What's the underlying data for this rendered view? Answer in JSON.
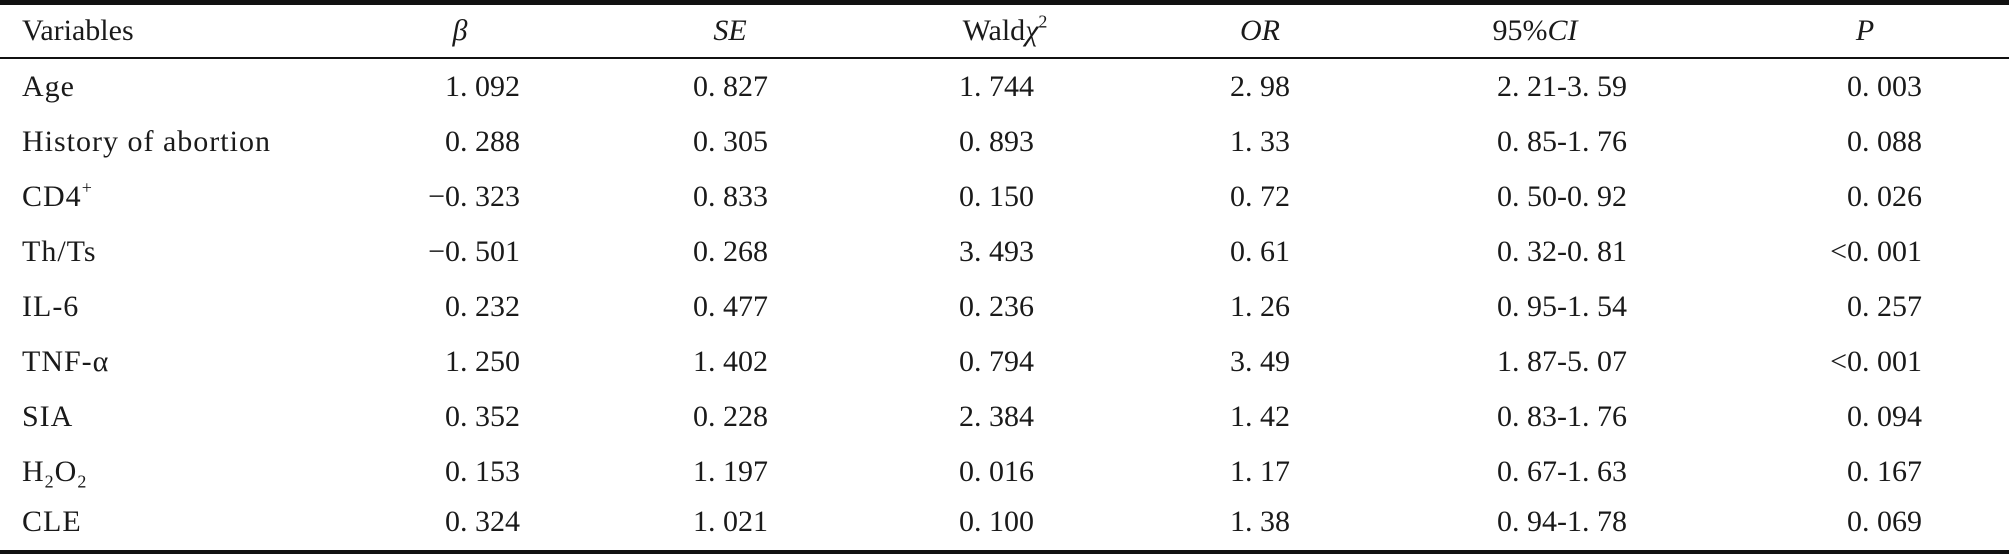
{
  "table": {
    "headers": {
      "variables": "Variables",
      "beta": "β",
      "se": "SE",
      "wald_prefix": "Wald",
      "wald_symbol": "χ",
      "wald_sup": "2",
      "or": "OR",
      "ci_prefix": "95%",
      "ci_suffix": "CI",
      "p": "P"
    },
    "rows": [
      {
        "var": "Age",
        "var_sup": "",
        "var_sub1": "",
        "var_mid": "",
        "var_sub2": "",
        "beta": "1. 092",
        "se": "0. 827",
        "wald": "1. 744",
        "or": "2. 98",
        "ci": "2. 21-3. 59",
        "p": "0. 003"
      },
      {
        "var": "History of abortion",
        "var_sup": "",
        "var_sub1": "",
        "var_mid": "",
        "var_sub2": "",
        "beta": "0. 288",
        "se": "0. 305",
        "wald": "0. 893",
        "or": "1. 33",
        "ci": "0. 85-1. 76",
        "p": "0. 088"
      },
      {
        "var": "CD4",
        "var_sup": "+",
        "var_sub1": "",
        "var_mid": "",
        "var_sub2": "",
        "beta": "−0. 323",
        "se": "0. 833",
        "wald": "0. 150",
        "or": "0. 72",
        "ci": "0. 50-0. 92",
        "p": "0. 026"
      },
      {
        "var": "Th/Ts",
        "var_sup": "",
        "var_sub1": "",
        "var_mid": "",
        "var_sub2": "",
        "beta": "−0. 501",
        "se": "0. 268",
        "wald": "3. 493",
        "or": "0. 61",
        "ci": "0. 32-0. 81",
        "p": "<0. 001"
      },
      {
        "var": "IL-6",
        "var_sup": "",
        "var_sub1": "",
        "var_mid": "",
        "var_sub2": "",
        "beta": "0. 232",
        "se": "0. 477",
        "wald": "0. 236",
        "or": "1. 26",
        "ci": "0. 95-1. 54",
        "p": "0. 257"
      },
      {
        "var": "TNF-α",
        "var_sup": "",
        "var_sub1": "",
        "var_mid": "",
        "var_sub2": "",
        "beta": "1. 250",
        "se": "1. 402",
        "wald": "0. 794",
        "or": "3. 49",
        "ci": "1. 87-5. 07",
        "p": "<0. 001"
      },
      {
        "var": "SIA",
        "var_sup": "",
        "var_sub1": "",
        "var_mid": "",
        "var_sub2": "",
        "beta": "0. 352",
        "se": "0. 228",
        "wald": "2. 384",
        "or": "1. 42",
        "ci": "0. 83-1. 76",
        "p": "0. 094"
      },
      {
        "var": "H",
        "var_sup": "",
        "var_sub1": "2",
        "var_mid": "O",
        "var_sub2": "2",
        "beta": "0. 153",
        "se": "1. 197",
        "wald": "0. 016",
        "or": "1. 17",
        "ci": "0. 67-1. 63",
        "p": "0. 167"
      },
      {
        "var": "CLE",
        "var_sup": "",
        "var_sub1": "",
        "var_mid": "",
        "var_sub2": "",
        "beta": "0. 324",
        "se": "1. 021",
        "wald": "0. 100",
        "or": "1. 38",
        "ci": "0. 94-1. 78",
        "p": "0. 069"
      }
    ]
  }
}
